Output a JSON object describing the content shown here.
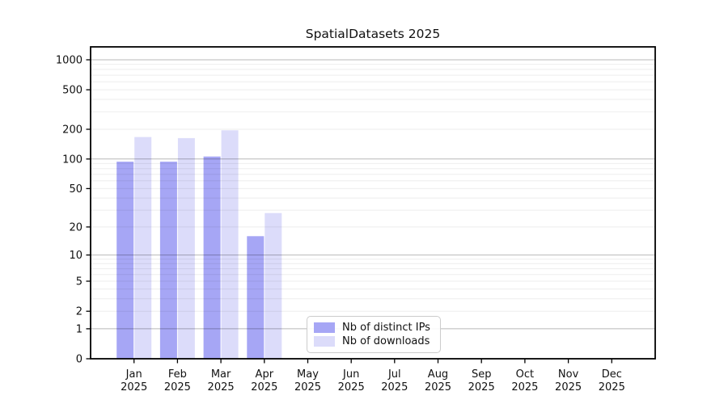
{
  "title": "SpatialDatasets 2025",
  "chart_data": {
    "type": "bar",
    "title": "SpatialDatasets 2025",
    "months": [
      "Jan",
      "Feb",
      "Mar",
      "Apr",
      "May",
      "Jun",
      "Jul",
      "Aug",
      "Sep",
      "Oct",
      "Nov",
      "Dec"
    ],
    "year": "2025",
    "categories": [
      "Jan 2025",
      "Feb 2025",
      "Mar 2025",
      "Apr 2025",
      "May 2025",
      "Jun 2025",
      "Jul 2025",
      "Aug 2025",
      "Sep 2025",
      "Oct 2025",
      "Nov 2025",
      "Dec 2025"
    ],
    "series": [
      {
        "name": "Nb of distinct IPs",
        "color": "#a6a6f5",
        "values": [
          94,
          94,
          106,
          16,
          0,
          0,
          0,
          0,
          0,
          0,
          0,
          0
        ]
      },
      {
        "name": "Nb of downloads",
        "color": "#dcdcfa",
        "values": [
          167,
          163,
          195,
          28,
          0,
          0,
          0,
          0,
          0,
          0,
          0,
          0
        ]
      }
    ],
    "yscale": "log1p (0 at baseline, logarithmic spacing above; position ~ log10(1+value))",
    "ylim": [
      0,
      1349
    ],
    "y_ticks": [
      0,
      1,
      2,
      5,
      10,
      20,
      50,
      100,
      200,
      500,
      1000
    ],
    "major_gridlines": [
      1,
      10,
      100,
      1000
    ],
    "minor_gridlines": [
      2,
      3,
      4,
      5,
      6,
      7,
      8,
      9,
      20,
      30,
      40,
      50,
      60,
      70,
      80,
      90,
      200,
      300,
      400,
      500,
      600,
      700,
      800,
      900
    ],
    "grid": true,
    "legend_position": "inside plot, lower center-left",
    "xlabel": "",
    "ylabel": ""
  },
  "colors": {
    "axis_spine": "#000000",
    "tick_label": "#111111",
    "major_grid": "rgba(0,0,0,0.28)",
    "minor_grid": "rgba(0,0,0,0.07)",
    "background": "#ffffff",
    "legend_border": "#cccccc"
  }
}
